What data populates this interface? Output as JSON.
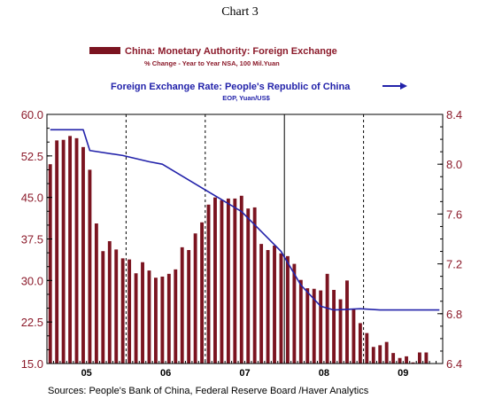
{
  "chart_data": {
    "type": "bar+line",
    "title": "Chart 3",
    "colors": {
      "bars": "#7b1420",
      "line": "#2222aa",
      "left_axis": "#8b1a2a",
      "right_axis": "#8b1a2a",
      "frame": "#000000"
    },
    "series": [
      {
        "name": "China: Monetary Authority: Foreign Exchange",
        "subtitle": "% Change - Year to Year    NSA, 100 Mil.Yuan",
        "type": "bar",
        "axis": "left",
        "start": "2005-01",
        "values": [
          51.0,
          55.3,
          55.4,
          56.1,
          55.7,
          54.1,
          50.0,
          40.3,
          35.3,
          37.1,
          35.6,
          34.0,
          33.8,
          31.3,
          33.3,
          31.8,
          30.5,
          30.7,
          31.2,
          32.0,
          36.0,
          35.5,
          38.5,
          40.5,
          43.7,
          45.0,
          44.5,
          44.8,
          44.8,
          45.3,
          43.0,
          43.2,
          36.6,
          35.5,
          36.3,
          34.9,
          34.4,
          33.0,
          30.1,
          28.6,
          28.5,
          28.2,
          31.2,
          28.3,
          26.6,
          30.0,
          24.8,
          22.3,
          20.5,
          18.0,
          18.3,
          18.9,
          16.9,
          16.0,
          16.3,
          15.2,
          17.0,
          17.0
        ]
      },
      {
        "name": "Foreign Exchange Rate: People's Republic of China",
        "subtitle": "EOP, Yuan/US$",
        "type": "line",
        "axis": "right",
        "points": [
          [
            "2005-01",
            8.277
          ],
          [
            "2005-06",
            8.277
          ],
          [
            "2005-07",
            8.11
          ],
          [
            "2005-12",
            8.07
          ],
          [
            "2006-04",
            8.02
          ],
          [
            "2006-06",
            8.0
          ],
          [
            "2006-12",
            7.81
          ],
          [
            "2007-06",
            7.62
          ],
          [
            "2007-12",
            7.3
          ],
          [
            "2008-03",
            7.03
          ],
          [
            "2008-06",
            6.86
          ],
          [
            "2008-08",
            6.83
          ],
          [
            "2008-12",
            6.84
          ],
          [
            "2009-03",
            6.83
          ],
          [
            "2009-12",
            6.83
          ]
        ]
      }
    ],
    "x_axis": {
      "labels": [
        "05",
        "06",
        "07",
        "08",
        "09"
      ],
      "start": "2005-01",
      "end": "2009-12"
    },
    "y_left": {
      "ylim": [
        15.0,
        60.0
      ],
      "ticks": [
        "60.0",
        "52.5",
        "45.0",
        "37.5",
        "30.0",
        "22.5",
        "15.0"
      ]
    },
    "y_right": {
      "ylim": [
        6.4,
        8.4
      ],
      "ticks": [
        "8.4",
        "8.0",
        "7.6",
        "7.2",
        "6.8",
        "6.4"
      ]
    },
    "grid": "dashed vertical lines at year boundaries",
    "source": "Sources:  People's Bank of China, Federal Reserve Board /Haver Analytics"
  }
}
